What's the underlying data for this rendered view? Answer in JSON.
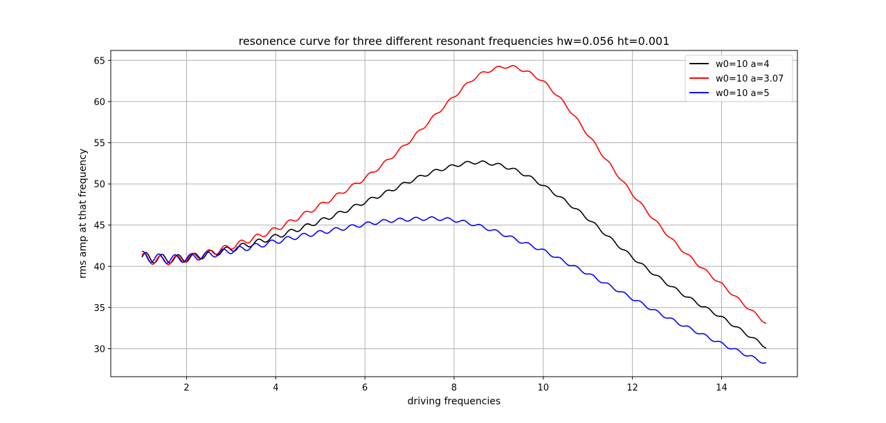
{
  "chart_data": {
    "type": "line",
    "title": "resonence curve for three different resonant frequencies hw=0.056 ht=0.001",
    "xlabel": "driving frequencies",
    "ylabel": "rms amp at that frequency",
    "xlim": [
      0.3,
      15.7
    ],
    "ylim": [
      26.6,
      66.2
    ],
    "xticks": [
      2,
      4,
      6,
      8,
      10,
      12,
      14
    ],
    "yticks": [
      30,
      35,
      40,
      45,
      50,
      55,
      60,
      65
    ],
    "grid": true,
    "legend_position": "top-right",
    "series": [
      {
        "name": "w0=10 a=4",
        "color": "#000000",
        "x": [
          1.0,
          1.5,
          2.0,
          2.5,
          3.0,
          3.5,
          4.0,
          4.5,
          5.0,
          5.5,
          6.0,
          6.5,
          7.0,
          7.5,
          8.0,
          8.4,
          8.8,
          9.2,
          9.6,
          10.0,
          10.5,
          11.0,
          11.5,
          12.0,
          12.5,
          13.0,
          13.5,
          14.0,
          14.5,
          15.0
        ],
        "y": [
          41.1,
          40.9,
          41.0,
          41.5,
          42.1,
          42.8,
          43.6,
          44.5,
          45.5,
          46.6,
          47.8,
          49.0,
          50.3,
          51.4,
          52.2,
          52.6,
          52.5,
          52.0,
          51.1,
          49.8,
          47.9,
          45.8,
          43.4,
          41.1,
          39.0,
          37.1,
          35.4,
          33.8,
          32.0,
          30.2
        ]
      },
      {
        "name": "w0=10 a=3.07",
        "color": "#ff0000",
        "x": [
          1.0,
          1.5,
          2.0,
          2.5,
          3.0,
          3.5,
          4.0,
          4.5,
          5.0,
          5.5,
          6.0,
          6.5,
          7.0,
          7.5,
          8.0,
          8.5,
          9.0,
          9.3,
          9.6,
          10.0,
          10.5,
          11.0,
          11.5,
          12.0,
          12.5,
          13.0,
          13.5,
          14.0,
          14.5,
          15.0
        ],
        "y": [
          41.0,
          40.7,
          41.0,
          41.6,
          42.4,
          43.4,
          44.5,
          45.9,
          47.4,
          49.0,
          50.7,
          52.8,
          55.2,
          57.9,
          60.6,
          63.0,
          64.1,
          64.2,
          63.7,
          62.4,
          59.6,
          56.0,
          52.3,
          48.8,
          45.6,
          42.6,
          40.1,
          37.8,
          35.4,
          33.1
        ]
      },
      {
        "name": "w0=10 a=5",
        "color": "#0000ff",
        "x": [
          1.0,
          1.5,
          2.0,
          2.5,
          3.0,
          3.5,
          4.0,
          4.5,
          5.0,
          5.5,
          6.0,
          6.5,
          7.0,
          7.5,
          8.0,
          8.5,
          9.0,
          9.5,
          10.0,
          10.5,
          11.0,
          11.5,
          12.0,
          12.5,
          13.0,
          13.5,
          14.0,
          14.5,
          15.0
        ],
        "y": [
          41.2,
          40.9,
          41.0,
          41.4,
          41.9,
          42.4,
          43.0,
          43.6,
          44.1,
          44.6,
          45.1,
          45.5,
          45.7,
          45.8,
          45.6,
          45.0,
          44.1,
          43.0,
          41.9,
          40.5,
          39.1,
          37.6,
          36.1,
          34.6,
          33.2,
          31.9,
          30.6,
          29.4,
          28.2
        ]
      }
    ]
  }
}
